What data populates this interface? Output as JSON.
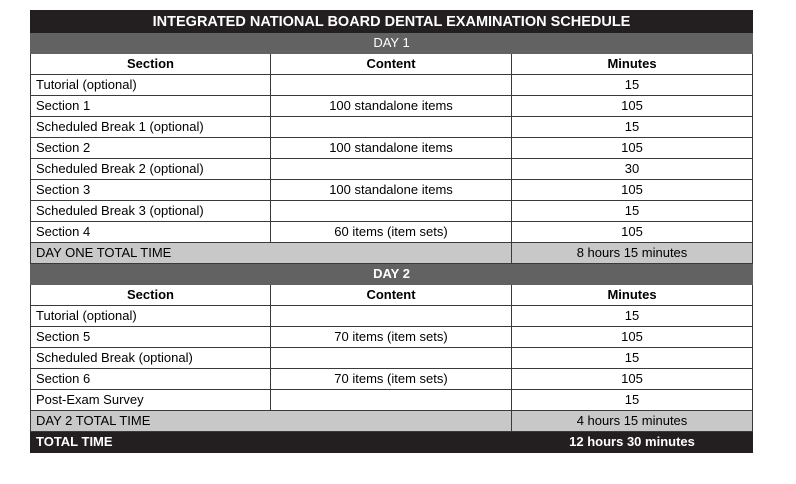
{
  "title": "INTEGRATED NATIONAL BOARD DENTAL EXAMINATION SCHEDULE",
  "columns": [
    "Section",
    "Content",
    "Minutes"
  ],
  "day1": {
    "label": "DAY 1",
    "rows": [
      {
        "section": "Tutorial (optional)",
        "content": "",
        "minutes": "15"
      },
      {
        "section": "Section 1",
        "content": "100 standalone items",
        "minutes": "105"
      },
      {
        "section": "Scheduled Break 1 (optional)",
        "content": "",
        "minutes": "15"
      },
      {
        "section": "Section 2",
        "content": "100 standalone items",
        "minutes": "105"
      },
      {
        "section": "Scheduled Break 2 (optional)",
        "content": "",
        "minutes": "30"
      },
      {
        "section": "Section 3",
        "content": "100 standalone items",
        "minutes": "105"
      },
      {
        "section": "Scheduled Break 3 (optional)",
        "content": "",
        "minutes": "15"
      },
      {
        "section": "Section 4",
        "content": "60 items (item sets)",
        "minutes": "105"
      }
    ],
    "total_label": "DAY ONE TOTAL TIME",
    "total_value": "8 hours 15 minutes"
  },
  "day2": {
    "label": "DAY 2",
    "rows": [
      {
        "section": "Tutorial (optional)",
        "content": "",
        "minutes": "15"
      },
      {
        "section": "Section 5",
        "content": "70 items (item sets)",
        "minutes": "105"
      },
      {
        "section": "Scheduled Break (optional)",
        "content": "",
        "minutes": "15"
      },
      {
        "section": "Section 6",
        "content": "70 items (item sets)",
        "minutes": "105"
      },
      {
        "section": "Post-Exam Survey",
        "content": "",
        "minutes": "15"
      }
    ],
    "total_label": "DAY 2 TOTAL TIME",
    "total_value": "4 hours 15 minutes"
  },
  "grand_total": {
    "label": "TOTAL TIME",
    "value": "12 hours 30 minutes"
  }
}
